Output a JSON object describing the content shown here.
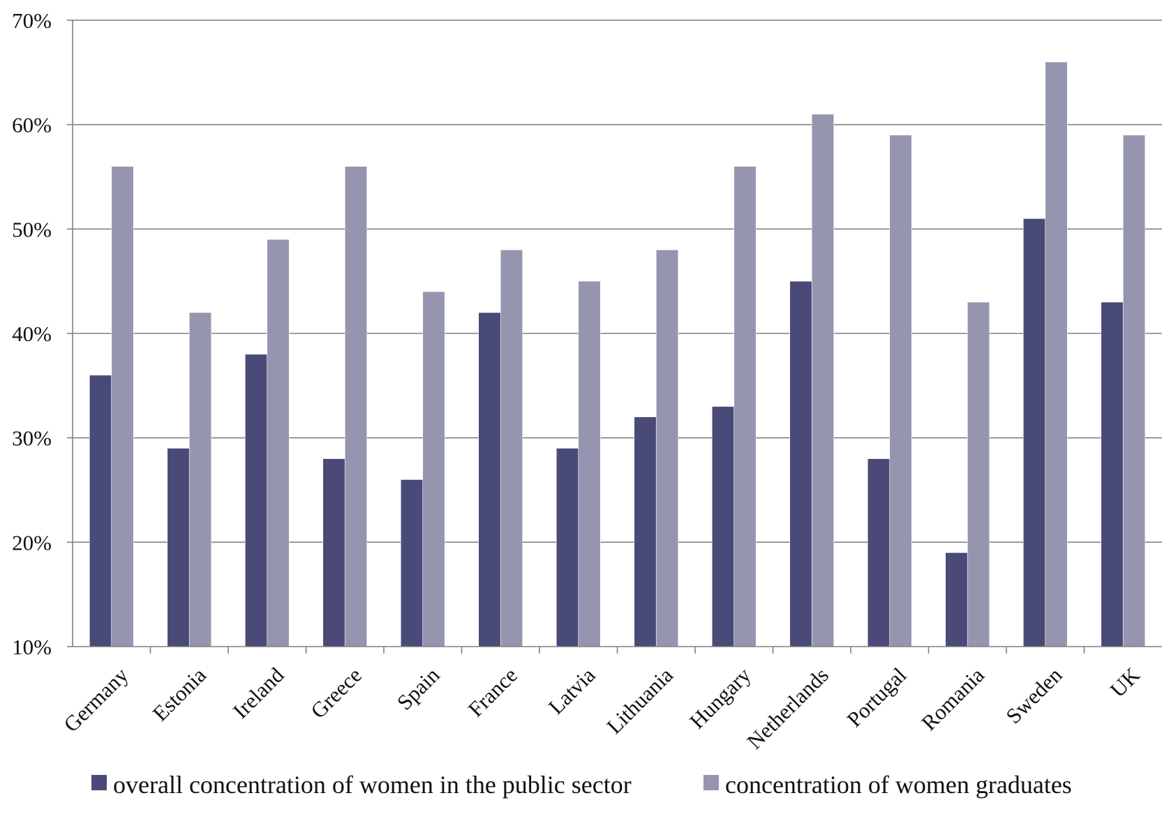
{
  "chart_data": {
    "type": "bar",
    "title": "",
    "xlabel": "",
    "ylabel": "",
    "categories": [
      "Germany",
      "Estonia",
      "Ireland",
      "Greece",
      "Spain",
      "France",
      "Latvia",
      "Lithuania",
      "Hungary",
      "Netherlands",
      "Portugal",
      "Romania",
      "Sweden",
      "UK"
    ],
    "series": [
      {
        "name": "overall concentration of women in the public sector",
        "color": "#4a4a78",
        "values": [
          36,
          29,
          38,
          28,
          26,
          42,
          29,
          32,
          33,
          45,
          28,
          19,
          51,
          43
        ]
      },
      {
        "name": "concentration of women graduates",
        "color": "#9595af",
        "values": [
          56,
          42,
          49,
          56,
          44,
          48,
          45,
          48,
          56,
          61,
          59,
          43,
          66,
          59
        ]
      }
    ],
    "ylim": [
      10,
      70
    ],
    "yticks": [
      10,
      20,
      30,
      40,
      50,
      60,
      70
    ],
    "ytick_labels": [
      "10%",
      "20%",
      "30%",
      "40%",
      "50%",
      "60%",
      "70%"
    ],
    "grid": true,
    "legend_position": "bottom"
  }
}
